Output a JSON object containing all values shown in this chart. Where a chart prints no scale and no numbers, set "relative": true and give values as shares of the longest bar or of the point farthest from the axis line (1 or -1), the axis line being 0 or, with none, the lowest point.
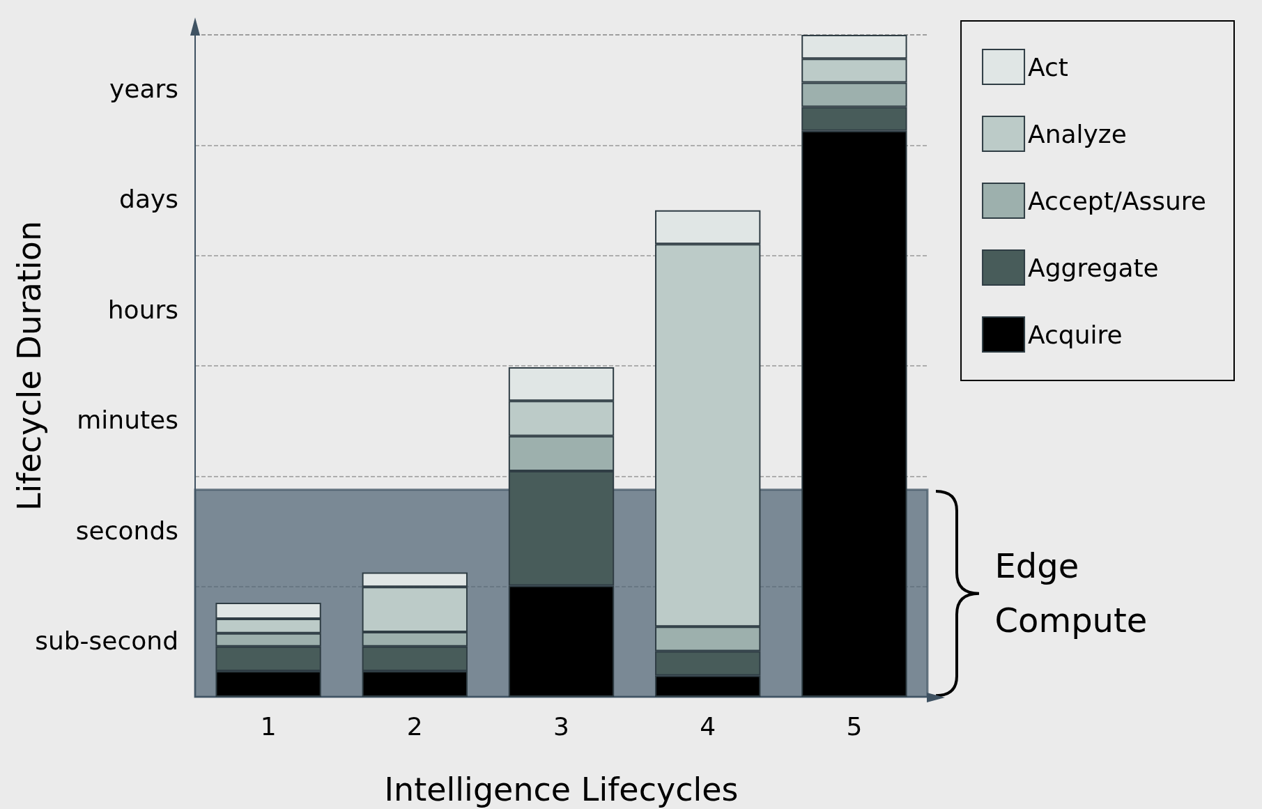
{
  "chart_data": {
    "type": "bar",
    "stacked": true,
    "relative": true,
    "xlabel": "Intelligence Lifecycles",
    "ylabel": "Lifecycle Duration",
    "categories": [
      "1",
      "2",
      "3",
      "4",
      "5"
    ],
    "series": [
      {
        "name": "Acquire",
        "color": "#000000",
        "values": [
          0.039,
          0.039,
          0.168,
          0.032,
          0.855
        ]
      },
      {
        "name": "Aggregate",
        "color": "#485c5a",
        "values": [
          0.037,
          0.037,
          0.173,
          0.037,
          0.036
        ]
      },
      {
        "name": "Accept/Assure",
        "color": "#9db0ad",
        "values": [
          0.02,
          0.022,
          0.053,
          0.037,
          0.037
        ]
      },
      {
        "name": "Analyze",
        "color": "#bccbc8",
        "values": [
          0.022,
          0.068,
          0.053,
          0.578,
          0.036
        ]
      },
      {
        "name": "Act",
        "color": "#e0e6e5",
        "values": [
          0.024,
          0.022,
          0.051,
          0.051,
          0.036
        ]
      }
    ],
    "annotations": [
      "sub-second",
      "seconds",
      "minutes",
      "hours",
      "days",
      "years"
    ],
    "grid": "y",
    "legend": "top right",
    "bands": [
      {
        "axis": "y",
        "from": 0,
        "to": 0.313,
        "label": "Edge Compute",
        "color": "#4a5f70"
      }
    ]
  }
}
